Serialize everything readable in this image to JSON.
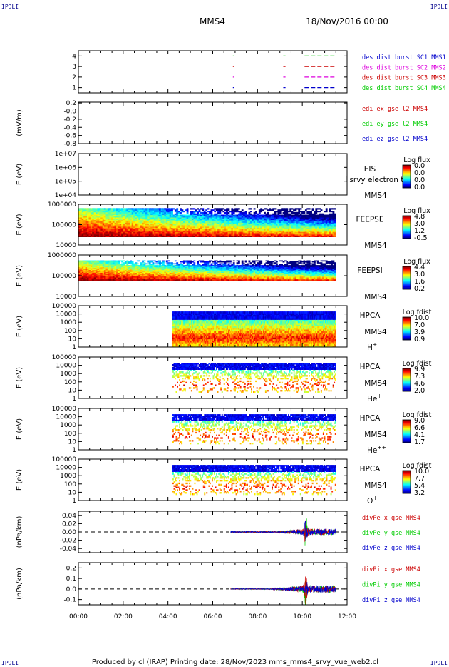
{
  "header": {
    "corner_label": "IPDLI",
    "spacecraft": "MMS4",
    "datetime": "18/Nov/2016 00:00"
  },
  "footer": {
    "text": "Produced by cl (IRAP)   Printing date: 28/Nov/2023   mms_mms4_srvy_vue_web2.cl"
  },
  "colors": {
    "red": "#cc0000",
    "green": "#00cc00",
    "blue": "#0000cc",
    "magenta": "#dd00dd"
  },
  "time_axis": {
    "range_hours": [
      0,
      12
    ],
    "tick_labels": [
      "00:00",
      "02:00",
      "04:00",
      "06:00",
      "08:00",
      "10:00",
      "12:00"
    ]
  },
  "chart_data": [
    {
      "id": "burst",
      "type": "timeline",
      "ylabel": "",
      "ylim": [
        0.5,
        4.5
      ],
      "yticks": [
        {
          "v": 4,
          "l": "4"
        },
        {
          "v": 3,
          "l": "3"
        },
        {
          "v": 2,
          "l": "2"
        },
        {
          "v": 1,
          "l": "1"
        }
      ],
      "series": [
        {
          "name": "des dist burst SC1 MMS1",
          "color": "#0000cc",
          "level": 1,
          "intervals": [
            [
              6.9,
              6.96
            ],
            [
              9.15,
              9.25
            ],
            [
              10.1,
              11.5
            ]
          ]
        },
        {
          "name": "des dist burst SC2 MMS2",
          "color": "#dd00dd",
          "level": 2,
          "intervals": [
            [
              6.9,
              6.96
            ],
            [
              9.15,
              9.25
            ],
            [
              10.1,
              11.5
            ]
          ]
        },
        {
          "name": "des dist burst SC3 MMS3",
          "color": "#cc0000",
          "level": 3,
          "intervals": [
            [
              6.9,
              6.96
            ],
            [
              9.15,
              9.25
            ],
            [
              10.1,
              11.5
            ]
          ]
        },
        {
          "name": "des dist burst SC4 MMS4",
          "color": "#00cc00",
          "level": 4,
          "intervals": [
            [
              6.9,
              6.96
            ],
            [
              9.15,
              9.25
            ],
            [
              10.1,
              11.5
            ]
          ]
        }
      ]
    },
    {
      "id": "edi",
      "type": "line",
      "ylabel": "(mV/m)",
      "ylim": [
        -0.8,
        0.22
      ],
      "yticks": [
        {
          "v": 0.2,
          "l": "0.2"
        },
        {
          "v": 0.0,
          "l": "-0.0"
        },
        {
          "v": -0.2,
          "l": "-0.2"
        },
        {
          "v": -0.4,
          "l": "-0.4"
        },
        {
          "v": -0.6,
          "l": "-0.6"
        },
        {
          "v": -0.8,
          "l": "-0.8"
        }
      ],
      "zero_line": true,
      "series": [
        {
          "name": "edi ex gse l2 MMS4",
          "color": "#cc0000"
        },
        {
          "name": "edi ey gse l2 MMS4",
          "color": "#00cc00"
        },
        {
          "name": "edi ez gse l2 MMS4",
          "color": "#0000cc"
        }
      ]
    },
    {
      "id": "eis",
      "type": "heatmap",
      "ylabel": "E (eV)",
      "log": true,
      "ylim": [
        10000,
        10000000
      ],
      "yticks": [
        {
          "v": 10000000,
          "l": "1e+07"
        },
        {
          "v": 1000000,
          "l": "1e+06"
        },
        {
          "v": 100000,
          "l": "1e+05"
        },
        {
          "v": 10000,
          "l": "1e+04"
        }
      ],
      "instrument": [
        "EIS",
        "MMS4"
      ],
      "overlay_text": "I srvy electron to",
      "colorbar": {
        "title": "Log flux",
        "ticks": [
          "0.0",
          "0.0",
          "0.0",
          "0.0"
        ]
      },
      "coverage": null
    },
    {
      "id": "feeps_e",
      "type": "heatmap",
      "ylabel": "E (eV)",
      "log": true,
      "ylim": [
        10000,
        1000000
      ],
      "yticks": [
        {
          "v": 1000000,
          "l": "1000000"
        },
        {
          "v": 100000,
          "l": "100000"
        },
        {
          "v": 10000,
          "l": "10000"
        }
      ],
      "instrument": [
        "FEEPSE",
        "MMS4"
      ],
      "colorbar": {
        "title": "Log flux",
        "ticks": [
          "4.8",
          "3.0",
          "1.2",
          "-0.5"
        ]
      },
      "coverage": {
        "t_start": 0,
        "t_end": 11.5,
        "e_low": 25000,
        "e_high": 650000,
        "high_energy_fade": 4.2,
        "low_energy_rich": true
      }
    },
    {
      "id": "feeps_i",
      "type": "heatmap",
      "ylabel": "E (eV)",
      "log": true,
      "ylim": [
        10000,
        1000000
      ],
      "yticks": [
        {
          "v": 1000000,
          "l": "1000000"
        },
        {
          "v": 100000,
          "l": "100000"
        },
        {
          "v": 10000,
          "l": "10000"
        }
      ],
      "instrument": [
        "FEEPSI",
        "MMS4"
      ],
      "colorbar": {
        "title": "Log flux",
        "ticks": [
          "4.4",
          "3.0",
          "1.6",
          "0.2"
        ]
      },
      "coverage": {
        "t_start": 0,
        "t_end": 11.5,
        "e_low": 55000,
        "e_high": 550000,
        "high_energy_fade": 1.8,
        "low_energy_rich": true
      }
    },
    {
      "id": "hpca_h",
      "type": "heatmap",
      "ylabel": "E (eV)",
      "log": true,
      "ylim": [
        1,
        100000
      ],
      "yticks": [
        {
          "v": 100000,
          "l": "100000"
        },
        {
          "v": 10000,
          "l": "10000"
        },
        {
          "v": 1000,
          "l": "1000"
        },
        {
          "v": 100,
          "l": "100"
        },
        {
          "v": 10,
          "l": "10"
        },
        {
          "v": 1,
          "l": "1"
        }
      ],
      "instrument": [
        "HPCA",
        "MMS4"
      ],
      "species": "H",
      "species_sup": "+",
      "colorbar": {
        "title": "Log fdist",
        "ticks": [
          "10.0",
          "7.0",
          "3.9",
          "0.9"
        ]
      },
      "coverage": {
        "t_start": 4.2,
        "t_end": 11.5,
        "e_low": 1,
        "e_high": 20000,
        "sparse": false
      }
    },
    {
      "id": "hpca_he1",
      "type": "heatmap",
      "ylabel": "E (eV)",
      "log": true,
      "ylim": [
        1,
        100000
      ],
      "yticks": [
        {
          "v": 100000,
          "l": "100000"
        },
        {
          "v": 10000,
          "l": "10000"
        },
        {
          "v": 1000,
          "l": "1000"
        },
        {
          "v": 100,
          "l": "100"
        },
        {
          "v": 10,
          "l": "10"
        },
        {
          "v": 1,
          "l": "1"
        }
      ],
      "instrument": [
        "HPCA",
        "MMS4"
      ],
      "species": "He",
      "species_sup": "+",
      "colorbar": {
        "title": "Log fdist",
        "ticks": [
          "9.9",
          "7.3",
          "4.6",
          "2.0"
        ]
      },
      "coverage": {
        "t_start": 4.2,
        "t_end": 11.5,
        "e_low": 5,
        "e_high": 20000,
        "sparse": true
      }
    },
    {
      "id": "hpca_he2",
      "type": "heatmap",
      "ylabel": "E (eV)",
      "log": true,
      "ylim": [
        1,
        100000
      ],
      "yticks": [
        {
          "v": 100000,
          "l": "100000"
        },
        {
          "v": 10000,
          "l": "10000"
        },
        {
          "v": 1000,
          "l": "1000"
        },
        {
          "v": 100,
          "l": "100"
        },
        {
          "v": 10,
          "l": "10"
        },
        {
          "v": 1,
          "l": "1"
        }
      ],
      "instrument": [
        "HPCA",
        "MMS4"
      ],
      "species": "He",
      "species_sup": "++",
      "colorbar": {
        "title": "Log fdist",
        "ticks": [
          "9.0",
          "6.6",
          "4.1",
          "1.7"
        ]
      },
      "coverage": {
        "t_start": 4.2,
        "t_end": 11.5,
        "e_low": 5,
        "e_high": 20000,
        "sparse": true
      }
    },
    {
      "id": "hpca_o",
      "type": "heatmap",
      "ylabel": "E (eV)",
      "log": true,
      "ylim": [
        1,
        100000
      ],
      "yticks": [
        {
          "v": 100000,
          "l": "100000"
        },
        {
          "v": 10000,
          "l": "10000"
        },
        {
          "v": 1000,
          "l": "1000"
        },
        {
          "v": 100,
          "l": "100"
        },
        {
          "v": 10,
          "l": "10"
        },
        {
          "v": 1,
          "l": "1"
        }
      ],
      "instrument": [
        "HPCA",
        "MMS4"
      ],
      "species": "O",
      "species_sup": "+",
      "colorbar": {
        "title": "Log fdist",
        "ticks": [
          "10.0",
          "7.7",
          "5.4",
          "3.2"
        ]
      },
      "coverage": {
        "t_start": 4.2,
        "t_end": 11.5,
        "e_low": 5,
        "e_high": 20000,
        "sparse": true
      }
    },
    {
      "id": "divpe",
      "type": "line",
      "ylabel": "(nPa/km)",
      "ylim": [
        -0.05,
        0.05
      ],
      "yticks": [
        {
          "v": 0.04,
          "l": "0.04"
        },
        {
          "v": 0.02,
          "l": "0.02"
        },
        {
          "v": 0.0,
          "l": "0.00"
        },
        {
          "v": -0.02,
          "l": "-0.02"
        },
        {
          "v": -0.04,
          "l": "-0.04"
        }
      ],
      "zero_line": true,
      "signal": {
        "t_start": 6.8,
        "t_end": 11.5,
        "base_amp": 0.0015,
        "grow_from": 8.8,
        "grow_amp": 0.006,
        "spike_t": 10.15,
        "spike_amp": 0.04
      },
      "series": [
        {
          "name": "divPe x gse MMS4",
          "color": "#cc0000"
        },
        {
          "name": "divPe y gse MMS4",
          "color": "#00cc00"
        },
        {
          "name": "divPe z gse MMS4",
          "color": "#0000cc"
        }
      ]
    },
    {
      "id": "divpi",
      "type": "line",
      "ylabel": "(nPa/km)",
      "ylim": [
        -0.15,
        0.25
      ],
      "yticks": [
        {
          "v": 0.2,
          "l": "0.2"
        },
        {
          "v": 0.1,
          "l": "0.1"
        },
        {
          "v": 0.0,
          "l": "0.0"
        },
        {
          "v": -0.1,
          "l": "-0.1"
        }
      ],
      "zero_line": true,
      "signal": {
        "t_start": 6.8,
        "t_end": 11.5,
        "base_amp": 0.004,
        "grow_from": 8.6,
        "grow_amp": 0.03,
        "spike_t": 10.15,
        "spike_amp": 0.2
      },
      "series": [
        {
          "name": "divPi x gse MMS4",
          "color": "#cc0000"
        },
        {
          "name": "divPi y gse MMS4",
          "color": "#00cc00"
        },
        {
          "name": "divPi z gse MMS4",
          "color": "#0000cc"
        }
      ]
    }
  ]
}
